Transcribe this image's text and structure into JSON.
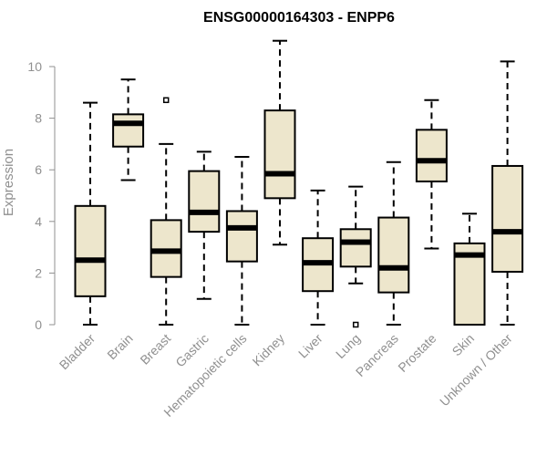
{
  "chart_data": {
    "type": "boxplot",
    "title": "ENSG00000164303 - ENPP6",
    "ylabel": "Expression",
    "xlabel": "",
    "ylim": [
      0,
      11
    ],
    "yticks": [
      0,
      2,
      4,
      6,
      8,
      10
    ],
    "box_fill": "#ede6cc",
    "median_color": "#000000",
    "categories": [
      "Bladder",
      "Brain",
      "Breast",
      "Gastric",
      "Hematopoietic cells",
      "Kidney",
      "Liver",
      "Lung",
      "Pancreas",
      "Prostate",
      "Skin",
      "Unknown / Other"
    ],
    "boxes": [
      {
        "min": 0.0,
        "q1": 1.1,
        "median": 2.5,
        "q3": 4.6,
        "max": 8.6,
        "outliers": []
      },
      {
        "min": 5.6,
        "q1": 6.9,
        "median": 7.8,
        "q3": 8.15,
        "max": 9.5,
        "outliers": []
      },
      {
        "min": 0.0,
        "q1": 1.85,
        "median": 2.85,
        "q3": 4.05,
        "max": 7.0,
        "outliers": [
          8.7
        ]
      },
      {
        "min": 1.0,
        "q1": 3.6,
        "median": 4.35,
        "q3": 5.95,
        "max": 6.7,
        "outliers": []
      },
      {
        "min": 0.0,
        "q1": 2.45,
        "median": 3.75,
        "q3": 4.4,
        "max": 6.5,
        "outliers": []
      },
      {
        "min": 3.1,
        "q1": 4.9,
        "median": 5.85,
        "q3": 8.3,
        "max": 11.0,
        "outliers": []
      },
      {
        "min": 0.0,
        "q1": 1.3,
        "median": 2.4,
        "q3": 3.35,
        "max": 5.2,
        "outliers": []
      },
      {
        "min": 1.6,
        "q1": 2.25,
        "median": 3.2,
        "q3": 3.7,
        "max": 5.35,
        "outliers": [
          0.0
        ]
      },
      {
        "min": 0.0,
        "q1": 1.25,
        "median": 2.2,
        "q3": 4.15,
        "max": 6.3,
        "outliers": []
      },
      {
        "min": 2.95,
        "q1": 5.55,
        "median": 6.35,
        "q3": 7.55,
        "max": 8.7,
        "outliers": []
      },
      {
        "min": 0.0,
        "q1": 0.0,
        "median": 2.7,
        "q3": 3.15,
        "max": 4.3,
        "outliers": []
      },
      {
        "min": 0.0,
        "q1": 2.05,
        "median": 3.6,
        "q3": 6.15,
        "max": 10.2,
        "outliers": []
      }
    ]
  }
}
